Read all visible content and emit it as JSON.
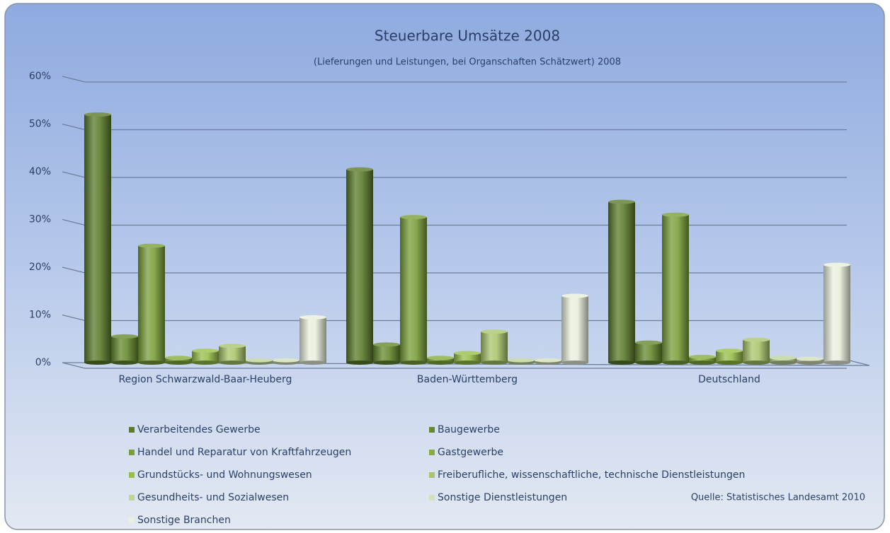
{
  "chart_data": {
    "type": "bar",
    "title": "Steuerbare Umsätze 2008",
    "subtitle": "(Lieferungen und Leistungen, bei Organschaften Schätzwert) 2008",
    "source": "Quelle: Statistisches Landesamt 2010",
    "categories": [
      "Region Schwarzwald-Baar-Heuberg",
      "Baden-Württemberg",
      "Deutschland"
    ],
    "ylim": [
      0,
      60
    ],
    "yticks": [
      {
        "value": 0,
        "label": "0%"
      },
      {
        "value": 10,
        "label": "10%"
      },
      {
        "value": 20,
        "label": "20%"
      },
      {
        "value": 30,
        "label": "30%"
      },
      {
        "value": 40,
        "label": "40%"
      },
      {
        "value": 50,
        "label": "50%"
      },
      {
        "value": 60,
        "label": "60%"
      }
    ],
    "grid": true,
    "series": [
      {
        "name": "Verarbeitendes Gewerbe",
        "color": "#5b7b2b",
        "values": [
          52,
          40.5,
          33.7
        ]
      },
      {
        "name": "Baugewerbe",
        "color": "#66892e",
        "values": [
          5.5,
          3.8,
          4.2
        ]
      },
      {
        "name": "Handel und Reparatur von Kraftfahrzeugen",
        "color": "#7a9f3a",
        "values": [
          24.5,
          30.5,
          31
        ]
      },
      {
        "name": "Gastgewerbe",
        "color": "#86ad3e",
        "values": [
          1,
          1,
          1.2
        ]
      },
      {
        "name": "Grundstücks- und Wohnungswesen",
        "color": "#98bf4a",
        "values": [
          2.5,
          2,
          2.5
        ]
      },
      {
        "name": "Freiberufliche, wissenschaftliche, technische Dienstleistungen",
        "color": "#a9c66c",
        "values": [
          3.5,
          6.5,
          4.8
        ]
      },
      {
        "name": "Gesundheits- und Sozialwesen",
        "color": "#bdd49a",
        "values": [
          0.5,
          0.5,
          1
        ]
      },
      {
        "name": "Sonstige Dienstleistungen",
        "color": "#d3e0bb",
        "values": [
          0.5,
          0.5,
          0.8
        ]
      },
      {
        "name": "Sonstige Branchen",
        "color": "#e9efdc",
        "values": [
          9.5,
          14,
          20.5
        ]
      }
    ]
  }
}
